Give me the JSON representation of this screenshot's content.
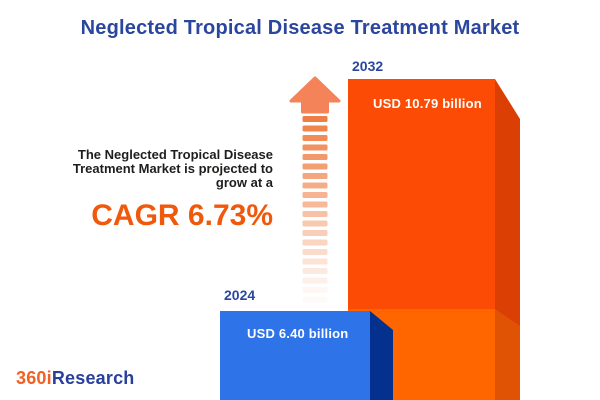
{
  "title": "Neglected Tropical Disease Treatment Market",
  "promo": {
    "lines": [
      "The Neglected Tropical Disease",
      "Treatment Market is projected to",
      "grow at a"
    ],
    "cagr_label": "CAGR 6.73%"
  },
  "logo": {
    "prefix": "360i",
    "suffix": "Research"
  },
  "colors": {
    "title_blue": "#2B469E",
    "year_label_blue": "#2B479F",
    "text_dark": "#1E1E1C",
    "cagr_orange": "#F0590B",
    "blue_front": "#2E73E8",
    "blue_side": "#04318D",
    "orange_growth_front": "#FB4B04",
    "orange_growth_side": "#DC3F04",
    "orange_base_front": "#FF6600",
    "orange_base_side": "#E05304",
    "arrow_head": "#F4835A",
    "arrow_stripe": "#EF7E44",
    "value_text": "#FFFFFF",
    "logo_orange": "#F26024",
    "logo_blue": "#28409B"
  },
  "chart_data": {
    "type": "bar",
    "title": "Neglected Tropical Disease Treatment Market",
    "categories": [
      "2024",
      "2032"
    ],
    "values": [
      6.4,
      10.79
    ],
    "unit": "USD billion",
    "value_labels": [
      "USD 6.40 billion",
      "USD 10.79 billion"
    ],
    "cagr_percent": 6.73,
    "annotations": [
      "The Neglected Tropical Disease Treatment Market is projected to grow at a CAGR 6.73%"
    ],
    "bar_colors": [
      "#2E73E8",
      "#FB4B04"
    ],
    "legend": false,
    "axes_visible": false
  }
}
